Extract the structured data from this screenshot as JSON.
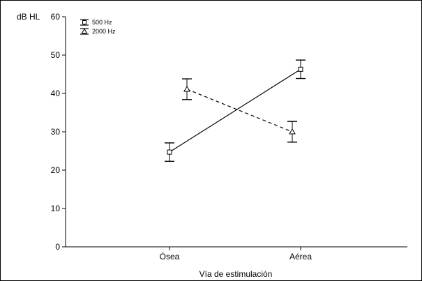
{
  "chart_data": {
    "type": "line",
    "categories": [
      "Ósea",
      "Aérea"
    ],
    "series": [
      {
        "name": "500 Hz",
        "marker": "square",
        "line_style": "solid",
        "values": [
          24.7,
          46.3
        ],
        "error": [
          [
            22.3,
            27.1
          ],
          [
            43.9,
            48.7
          ]
        ]
      },
      {
        "name": "2000 Hz",
        "marker": "triangle",
        "line_style": "dashed",
        "values": [
          41.1,
          30.0
        ],
        "error": [
          [
            38.4,
            43.8
          ],
          [
            27.3,
            32.7
          ]
        ]
      }
    ],
    "xlabel": "Vía de estimulación",
    "ylabel": "dB HL",
    "ylim": [
      0,
      60
    ],
    "yticks": [
      0,
      10,
      20,
      30,
      40,
      50,
      60
    ],
    "grid": false,
    "legend_position": "top-left",
    "colors": {
      "line": "#000000",
      "background": "#ffffff"
    }
  }
}
